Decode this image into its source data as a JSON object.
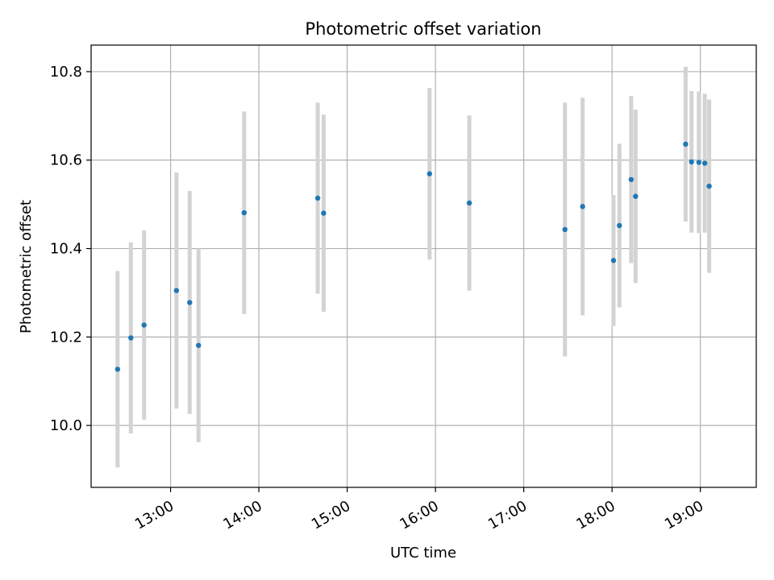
{
  "chart_data": {
    "type": "scatter",
    "title": "Photometric offset variation",
    "xlabel": "UTC time",
    "ylabel": "Photometric offset",
    "x_ticks": [
      "13:00",
      "14:00",
      "15:00",
      "16:00",
      "17:00",
      "18:00",
      "19:00"
    ],
    "y_ticks": [
      "10.0",
      "10.2",
      "10.4",
      "10.6",
      "10.8"
    ],
    "xlim": [
      "12:06",
      "19:38"
    ],
    "ylim": [
      9.86,
      10.86
    ],
    "grid": true,
    "colors": {
      "point": "#1f77b4",
      "errorbar": "#d3d3d3",
      "grid": "#b0b0b0"
    },
    "points": [
      {
        "x": "12:24",
        "y": 10.127,
        "err": 0.222
      },
      {
        "x": "12:33",
        "y": 10.198,
        "err": 0.216
      },
      {
        "x": "12:42",
        "y": 10.227,
        "err": 0.214
      },
      {
        "x": "13:04",
        "y": 10.305,
        "err": 0.267
      },
      {
        "x": "13:13",
        "y": 10.278,
        "err": 0.252
      },
      {
        "x": "13:19",
        "y": 10.181,
        "err": 0.219
      },
      {
        "x": "13:50",
        "y": 10.481,
        "err": 0.229
      },
      {
        "x": "14:40",
        "y": 10.514,
        "err": 0.216
      },
      {
        "x": "14:44",
        "y": 10.48,
        "err": 0.223
      },
      {
        "x": "15:56",
        "y": 10.569,
        "err": 0.194
      },
      {
        "x": "16:23",
        "y": 10.503,
        "err": 0.198
      },
      {
        "x": "17:28",
        "y": 10.443,
        "err": 0.287
      },
      {
        "x": "17:40",
        "y": 10.495,
        "err": 0.246
      },
      {
        "x": "18:01",
        "y": 10.373,
        "err": 0.148
      },
      {
        "x": "18:05",
        "y": 10.452,
        "err": 0.185
      },
      {
        "x": "18:13",
        "y": 10.556,
        "err": 0.189
      },
      {
        "x": "18:16",
        "y": 10.518,
        "err": 0.196
      },
      {
        "x": "18:50",
        "y": 10.636,
        "err": 0.175
      },
      {
        "x": "18:54",
        "y": 10.596,
        "err": 0.16
      },
      {
        "x": "18:59",
        "y": 10.595,
        "err": 0.16
      },
      {
        "x": "19:03",
        "y": 10.593,
        "err": 0.157
      },
      {
        "x": "19:06",
        "y": 10.541,
        "err": 0.196
      }
    ]
  }
}
